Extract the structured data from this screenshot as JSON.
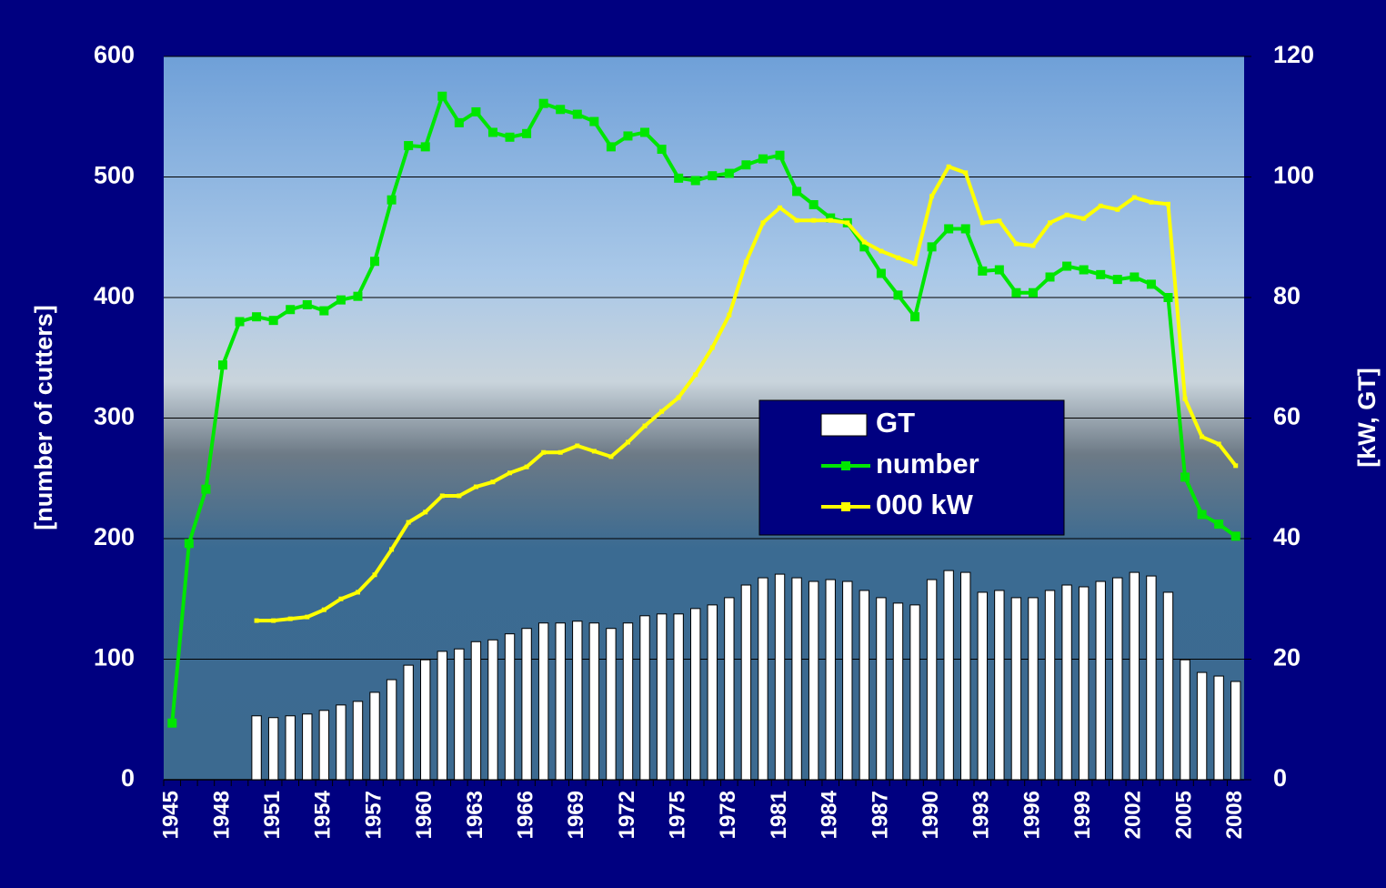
{
  "chart_data": {
    "type": "bar-line",
    "ylabel": "[number of cutters]",
    "y2label": "[kW, GT]",
    "categories": [
      "1945",
      null,
      null,
      "1948",
      null,
      null,
      "1951",
      null,
      null,
      "1954",
      null,
      null,
      "1957",
      null,
      null,
      "1960",
      null,
      null,
      "1963",
      null,
      null,
      "1966",
      null,
      null,
      "1969",
      null,
      null,
      "1972",
      null,
      null,
      "1975",
      null,
      null,
      "1978",
      null,
      null,
      "1981",
      null,
      null,
      "1984",
      null,
      null,
      "1987",
      null,
      null,
      "1990",
      null,
      null,
      "1993",
      null,
      null,
      "1996",
      null,
      null,
      "1999",
      null,
      null,
      "2002",
      null,
      null,
      "2005",
      null,
      null,
      "2008"
    ],
    "ylim": [
      0,
      600
    ],
    "yticks": [
      0,
      100,
      200,
      300,
      400,
      500,
      600
    ],
    "y2lim": [
      0,
      120
    ],
    "y2ticks": [
      0,
      20,
      40,
      60,
      80,
      100,
      120
    ],
    "grid": true,
    "legend": "right",
    "series": [
      {
        "name": "GT",
        "kind": "bar",
        "axis": "y2",
        "color": "#ffffff",
        "values": [
          null,
          null,
          null,
          null,
          null,
          10.6,
          10.3,
          10.6,
          10.9,
          11.5,
          12.4,
          13.0,
          14.5,
          16.6,
          19.0,
          19.9,
          21.3,
          21.7,
          22.9,
          23.2,
          24.2,
          25.1,
          26.0,
          26.0,
          26.3,
          26.0,
          25.1,
          26.0,
          27.2,
          27.5,
          27.5,
          28.4,
          29.0,
          30.2,
          32.3,
          33.5,
          34.1,
          33.5,
          32.9,
          33.2,
          32.9,
          31.4,
          30.2,
          29.3,
          29.0,
          33.2,
          34.7,
          34.4,
          31.1,
          31.4,
          30.2,
          30.2,
          31.4,
          32.3,
          32.0,
          32.9,
          33.5,
          34.4,
          33.8,
          31.1,
          19.9,
          17.8,
          17.2,
          16.3
        ]
      },
      {
        "name": "number",
        "kind": "line",
        "color": "#00e600",
        "values": [
          47,
          196,
          241,
          344,
          380,
          384,
          381,
          390,
          394,
          389,
          398,
          401,
          430,
          481,
          526,
          525,
          567,
          545,
          554,
          537,
          533,
          536,
          561,
          556,
          552,
          546,
          525,
          534,
          537,
          523,
          499,
          497,
          501,
          503,
          510,
          515,
          518,
          488,
          477,
          466,
          462,
          442,
          420,
          402,
          384,
          442,
          457,
          457,
          422,
          423,
          404,
          404,
          417,
          426,
          423,
          419,
          415,
          417,
          411,
          400,
          251,
          220,
          212,
          202
        ]
      },
      {
        "name": "000 kW",
        "kind": "line",
        "axis": "y2",
        "color": "#ffff00",
        "values": [
          null,
          null,
          null,
          null,
          null,
          26.4,
          26.4,
          26.7,
          27.0,
          28.2,
          30.0,
          31.1,
          34.0,
          38.2,
          42.7,
          44.4,
          47.1,
          47.1,
          48.6,
          49.4,
          50.9,
          51.9,
          54.3,
          54.3,
          55.4,
          54.5,
          53.6,
          56.0,
          58.7,
          61.1,
          63.4,
          67.2,
          71.7,
          77.1,
          85.9,
          92.4,
          94.9,
          92.8,
          92.8,
          92.8,
          92.4,
          89.2,
          87.7,
          86.6,
          85.6,
          96.8,
          101.7,
          100.7,
          92.4,
          92.7,
          88.9,
          88.6,
          92.4,
          93.7,
          93.1,
          95.2,
          94.6,
          96.6,
          95.8,
          95.5,
          63.2,
          56.9,
          55.7,
          52.1
        ]
      }
    ]
  }
}
